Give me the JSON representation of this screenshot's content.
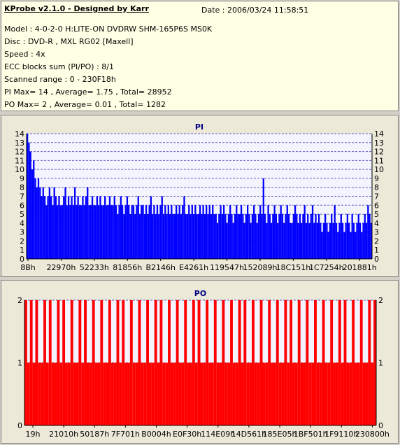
{
  "info": {
    "title": "KProbe v2.1.0 - Designed by Karr",
    "date": "Date : 2006/03/24 11:58:51",
    "model": "Model : 4-0-2-0 H:LITE-ON DVDRW SHM-165P6S MS0K",
    "disc": "Disc : DVD-R , MXL RG02 [Maxell]",
    "speed": "Speed : 4x",
    "ecc": "ECC blocks sum (PI/PO) : 8/1",
    "range": "Scanned range : 0 - 230F18h",
    "pi_stats": "PI Max= 14 , Average= 1.75 , Total= 28952",
    "po_stats": "PO Max= 2 , Average= 0.01 , Total= 1282"
  },
  "colors": {
    "pi": "#0000ff",
    "po": "#ff0000",
    "title": "#000080",
    "plot_bg": "#f4f4ff"
  },
  "chart_data": [
    {
      "type": "bar",
      "title": "PI",
      "ylim": [
        0,
        14
      ],
      "yticks": [
        0,
        1,
        2,
        3,
        4,
        5,
        6,
        7,
        8,
        9,
        10,
        11,
        12,
        13,
        14
      ],
      "xticks": [
        "8Bh",
        "22970h",
        "52233h",
        "81856h",
        "B2146h",
        "E4261h",
        "119547h",
        "152089h",
        "18C151h",
        "1C7254h",
        "201881h"
      ],
      "grid": true,
      "series": [
        {
          "values": [
            14,
            13,
            12,
            10,
            11,
            9,
            8,
            9,
            8,
            7,
            8,
            7,
            6,
            7,
            8,
            7,
            6,
            8,
            7,
            6,
            7,
            6,
            6,
            7,
            8,
            6,
            7,
            6,
            7,
            6,
            8,
            6,
            7,
            6,
            6,
            7,
            6,
            7,
            8,
            6,
            6,
            7,
            6,
            6,
            7,
            6,
            7,
            6,
            6,
            7,
            6,
            6,
            7,
            6,
            6,
            7,
            6,
            5,
            6,
            7,
            6,
            5,
            6,
            7,
            6,
            5,
            6,
            6,
            5,
            6,
            7,
            5,
            6,
            6,
            5,
            6,
            5,
            6,
            7,
            5,
            6,
            5,
            6,
            5,
            6,
            7,
            5,
            6,
            5,
            6,
            5,
            6,
            5,
            5,
            6,
            5,
            6,
            5,
            6,
            7,
            5,
            5,
            6,
            5,
            6,
            5,
            6,
            5,
            5,
            6,
            5,
            6,
            5,
            6,
            5,
            6,
            5,
            6,
            5,
            5,
            4,
            5,
            6,
            5,
            6,
            5,
            4,
            5,
            6,
            5,
            4,
            5,
            6,
            5,
            5,
            6,
            5,
            4,
            5,
            6,
            5,
            4,
            5,
            6,
            5,
            4,
            5,
            6,
            5,
            9,
            5,
            4,
            6,
            5,
            4,
            5,
            6,
            5,
            4,
            5,
            6,
            5,
            4,
            5,
            6,
            5,
            4,
            4,
            5,
            6,
            5,
            4,
            5,
            4,
            5,
            6,
            4,
            5,
            4,
            5,
            6,
            4,
            5,
            4,
            5,
            4,
            3,
            4,
            5,
            4,
            3,
            4,
            5,
            4,
            6,
            4,
            3,
            4,
            5,
            4,
            3,
            4,
            5,
            4,
            3,
            5,
            4,
            3,
            4,
            5,
            4,
            3,
            4,
            5,
            4,
            6,
            5,
            4
          ]
        }
      ]
    },
    {
      "type": "bar",
      "title": "PO",
      "ylim": [
        0,
        2
      ],
      "yticks": [
        0,
        1,
        2
      ],
      "xticks": [
        "19h",
        "21010h",
        "50187h",
        "7F701h",
        "B0004h",
        "E0F30h",
        "114E09h",
        "14D561h",
        "185E05h",
        "1BF501h",
        "1F9110h",
        "230800h"
      ],
      "grid": true,
      "series": [
        {
          "values": [
            2,
            1,
            2,
            1,
            2,
            1,
            1,
            2,
            1,
            2,
            1,
            1,
            2,
            1,
            2,
            1,
            1,
            2,
            1,
            1,
            2,
            1,
            2,
            1,
            1,
            2,
            1,
            1,
            2,
            1,
            1,
            2,
            1,
            1,
            2,
            1,
            2,
            1,
            1,
            2,
            1,
            1,
            2,
            1,
            1,
            2,
            1,
            1,
            2,
            1,
            2,
            1,
            1,
            2,
            1,
            1,
            2,
            1,
            1,
            2,
            1,
            1,
            2,
            1,
            2,
            1,
            1,
            2,
            1,
            1,
            2,
            1,
            1,
            2,
            1,
            1,
            2,
            1,
            1,
            2,
            1,
            2,
            1,
            1,
            2,
            1,
            1,
            2,
            1,
            1,
            2,
            1,
            1,
            2,
            1,
            1,
            2,
            1,
            2,
            1,
            1,
            2,
            1,
            1,
            2,
            1,
            1,
            2,
            1,
            1,
            2,
            1,
            1,
            2,
            1,
            1,
            2,
            1,
            2,
            1,
            1,
            2,
            1,
            1,
            2,
            1,
            1,
            2,
            1,
            2
          ]
        }
      ]
    }
  ]
}
